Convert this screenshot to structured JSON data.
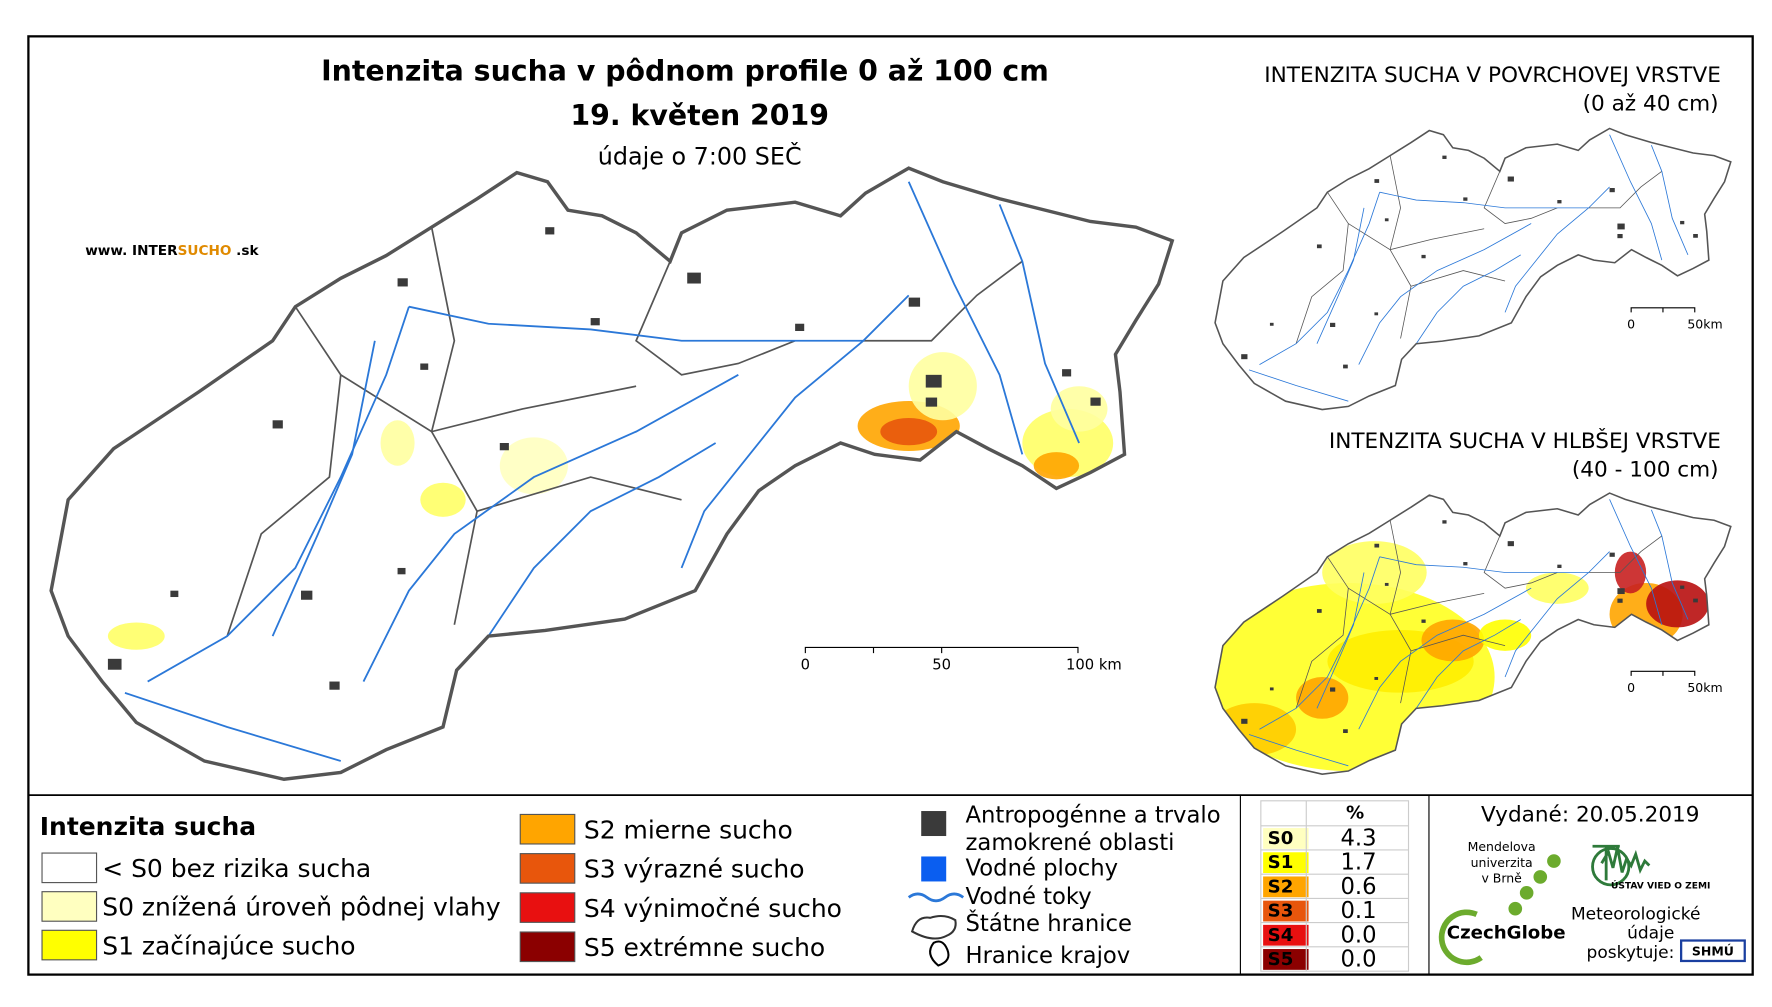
{
  "header": {
    "title": "Intenzita sucha v pôdnom profile 0 až 100 cm",
    "date": "19. květen 2019",
    "time": "údaje o 7:00 SEČ"
  },
  "website": {
    "prefix": "www. INTER",
    "highlight": "SUCHO",
    "suffix": " .sk"
  },
  "main_scale": [
    "0",
    "50",
    "100 km"
  ],
  "insets": [
    {
      "title": "INTENZITA SUCHA V POVRCHOVEJ VRSTVE",
      "subtitle": "(0 až 40 cm)",
      "scale": [
        "0",
        "50km"
      ]
    },
    {
      "title": "INTENZITA SUCHA V HLBŠEJ VRSTVE",
      "subtitle": "(40 - 100 cm)",
      "scale": [
        "0",
        "50km"
      ]
    }
  ],
  "legend": {
    "title": "Intenzita sucha",
    "items": [
      {
        "label": "< S0 bez rizika sucha",
        "color": "#ffffff"
      },
      {
        "label": "S0 znížená úroveň pôdnej vlahy",
        "color": "#ffffc0"
      },
      {
        "label": "S1 začínajúce sucho",
        "color": "#ffff00"
      },
      {
        "label": "S2 mierne sucho",
        "color": "#ffa500"
      },
      {
        "label": "S3 výrazné sucho",
        "color": "#e8560c"
      },
      {
        "label": "S4 výnimočné sucho",
        "color": "#e81010"
      },
      {
        "label": "S5 extrémne sucho",
        "color": "#8b0000"
      }
    ]
  },
  "layers": [
    {
      "label": "Antropogénne a trvalo zamokrené oblasti"
    },
    {
      "label": "Vodné plochy"
    },
    {
      "label": "Vodné toky"
    },
    {
      "label": "Štátne hranice"
    },
    {
      "label": "Hranice krajov"
    }
  ],
  "table": {
    "header": "%",
    "rows": [
      [
        "S0",
        "4.3"
      ],
      [
        "S1",
        "1.7"
      ],
      [
        "S2",
        "0.6"
      ],
      [
        "S3",
        "0.1"
      ],
      [
        "S4",
        "0.0"
      ],
      [
        "S5",
        "0.0"
      ]
    ]
  },
  "issued": "Vydané: 20.05.2019",
  "logos": {
    "mendel": [
      "Mendelova",
      "univerzita",
      "v Brně"
    ],
    "czechglobe": "CzechGlobe",
    "ustav": "ÚSTAV VIED O ZEMI",
    "meteo": [
      "Meteorologické",
      "údaje",
      "poskytuje:"
    ],
    "shmu": "SHMÚ"
  }
}
